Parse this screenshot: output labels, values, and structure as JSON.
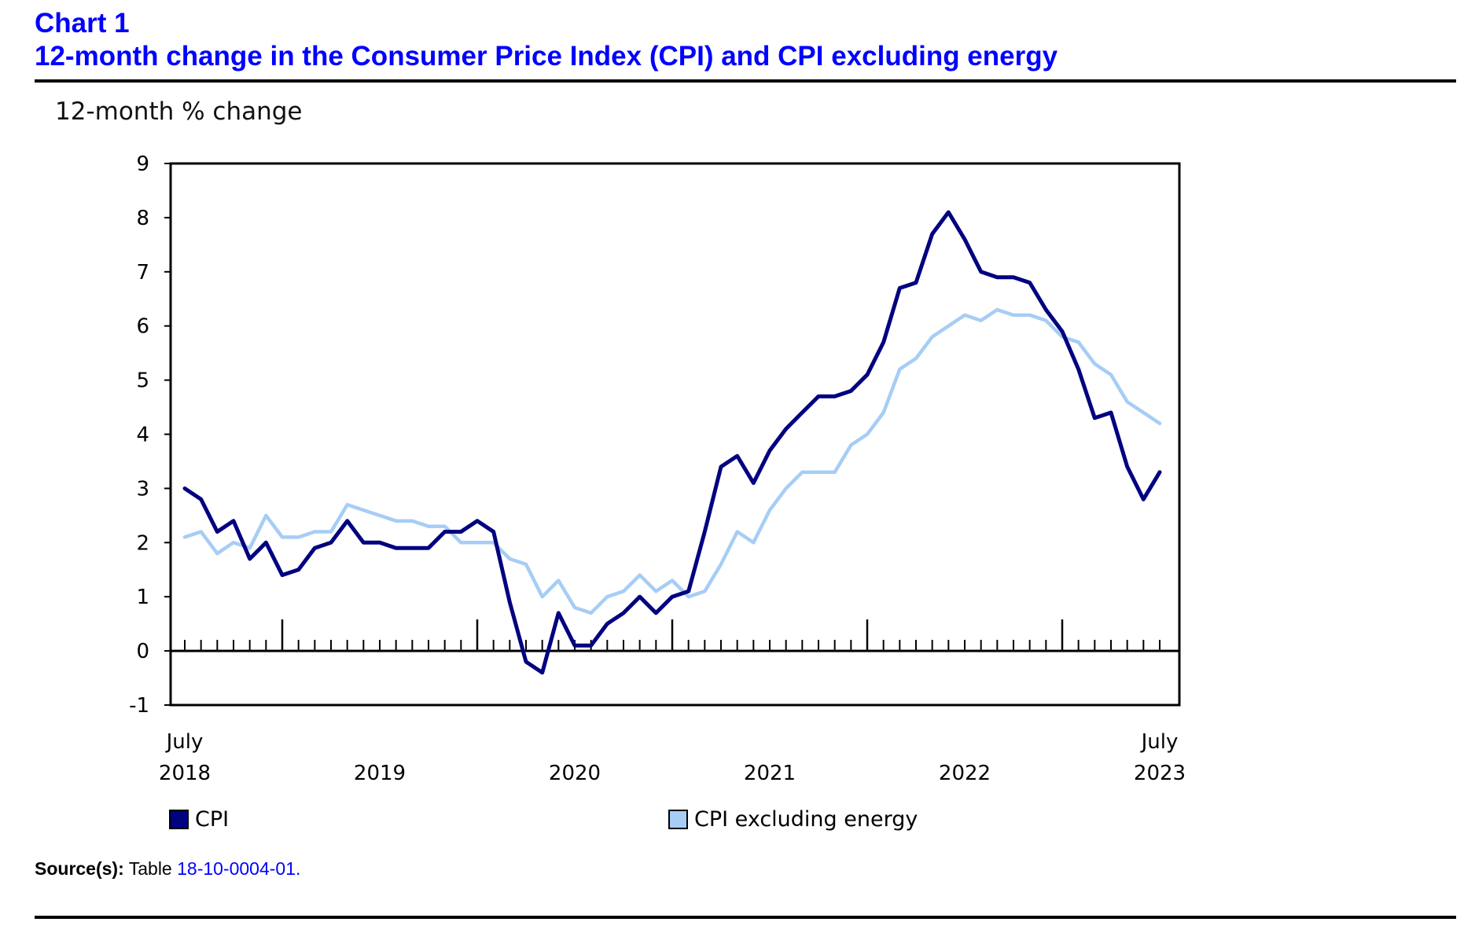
{
  "header": {
    "chart_label": "Chart 1",
    "title": "12-month change in the Consumer Price Index (CPI) and CPI excluding energy"
  },
  "source": {
    "label": "Source(s):",
    "text": "Table",
    "link": "18-10-0004-01."
  },
  "colors": {
    "title": "#0000ff",
    "cpi": "#000080",
    "cpi_ex_energy": "#a6cdf5"
  },
  "chart_data": {
    "type": "line",
    "ylabel": "12-month % change",
    "ylim": [
      -1,
      9
    ],
    "yticks": [
      -1,
      0,
      1,
      2,
      3,
      4,
      5,
      6,
      7,
      8,
      9
    ],
    "x_start": "2018-07",
    "x_end": "2023-07",
    "x_labels": [
      {
        "month": "July",
        "year": "2018",
        "at": "2018-07"
      },
      {
        "month": "",
        "year": "2019",
        "at": "2019-07"
      },
      {
        "month": "",
        "year": "2020",
        "at": "2020-07"
      },
      {
        "month": "",
        "year": "2021",
        "at": "2021-07"
      },
      {
        "month": "",
        "year": "2022",
        "at": "2022-07"
      },
      {
        "month": "July",
        "year": "2023",
        "at": "2023-07"
      }
    ],
    "major_ticks": [
      "2019-01",
      "2020-01",
      "2021-01",
      "2022-01",
      "2023-01"
    ],
    "grid": false,
    "legend_position": "bottom",
    "series": [
      {
        "name": "CPI",
        "values": [
          3.0,
          2.8,
          2.2,
          2.4,
          1.7,
          2.0,
          1.4,
          1.5,
          1.9,
          2.0,
          2.4,
          2.0,
          2.0,
          1.9,
          1.9,
          1.9,
          2.2,
          2.2,
          2.4,
          2.2,
          0.9,
          -0.2,
          -0.4,
          0.7,
          0.1,
          0.1,
          0.5,
          0.7,
          1.0,
          0.7,
          1.0,
          1.1,
          2.2,
          3.4,
          3.6,
          3.1,
          3.7,
          4.1,
          4.4,
          4.7,
          4.7,
          4.8,
          5.1,
          5.7,
          6.7,
          6.8,
          7.7,
          8.1,
          7.6,
          7.0,
          6.9,
          6.9,
          6.8,
          6.3,
          5.9,
          5.2,
          4.3,
          4.4,
          3.4,
          2.8,
          3.3
        ]
      },
      {
        "name": "CPI excluding energy",
        "values": [
          2.1,
          2.2,
          1.8,
          2.0,
          1.9,
          2.5,
          2.1,
          2.1,
          2.2,
          2.2,
          2.7,
          2.6,
          2.5,
          2.4,
          2.4,
          2.3,
          2.3,
          2.0,
          2.0,
          2.0,
          1.7,
          1.6,
          1.0,
          1.3,
          0.8,
          0.7,
          1.0,
          1.1,
          1.4,
          1.1,
          1.3,
          1.0,
          1.1,
          1.6,
          2.2,
          2.0,
          2.6,
          3.0,
          3.3,
          3.3,
          3.3,
          3.8,
          4.0,
          4.4,
          5.2,
          5.4,
          5.8,
          6.0,
          6.2,
          6.1,
          6.3,
          6.2,
          6.2,
          6.1,
          5.8,
          5.7,
          5.3,
          5.1,
          4.6,
          4.4,
          4.2
        ]
      }
    ]
  }
}
